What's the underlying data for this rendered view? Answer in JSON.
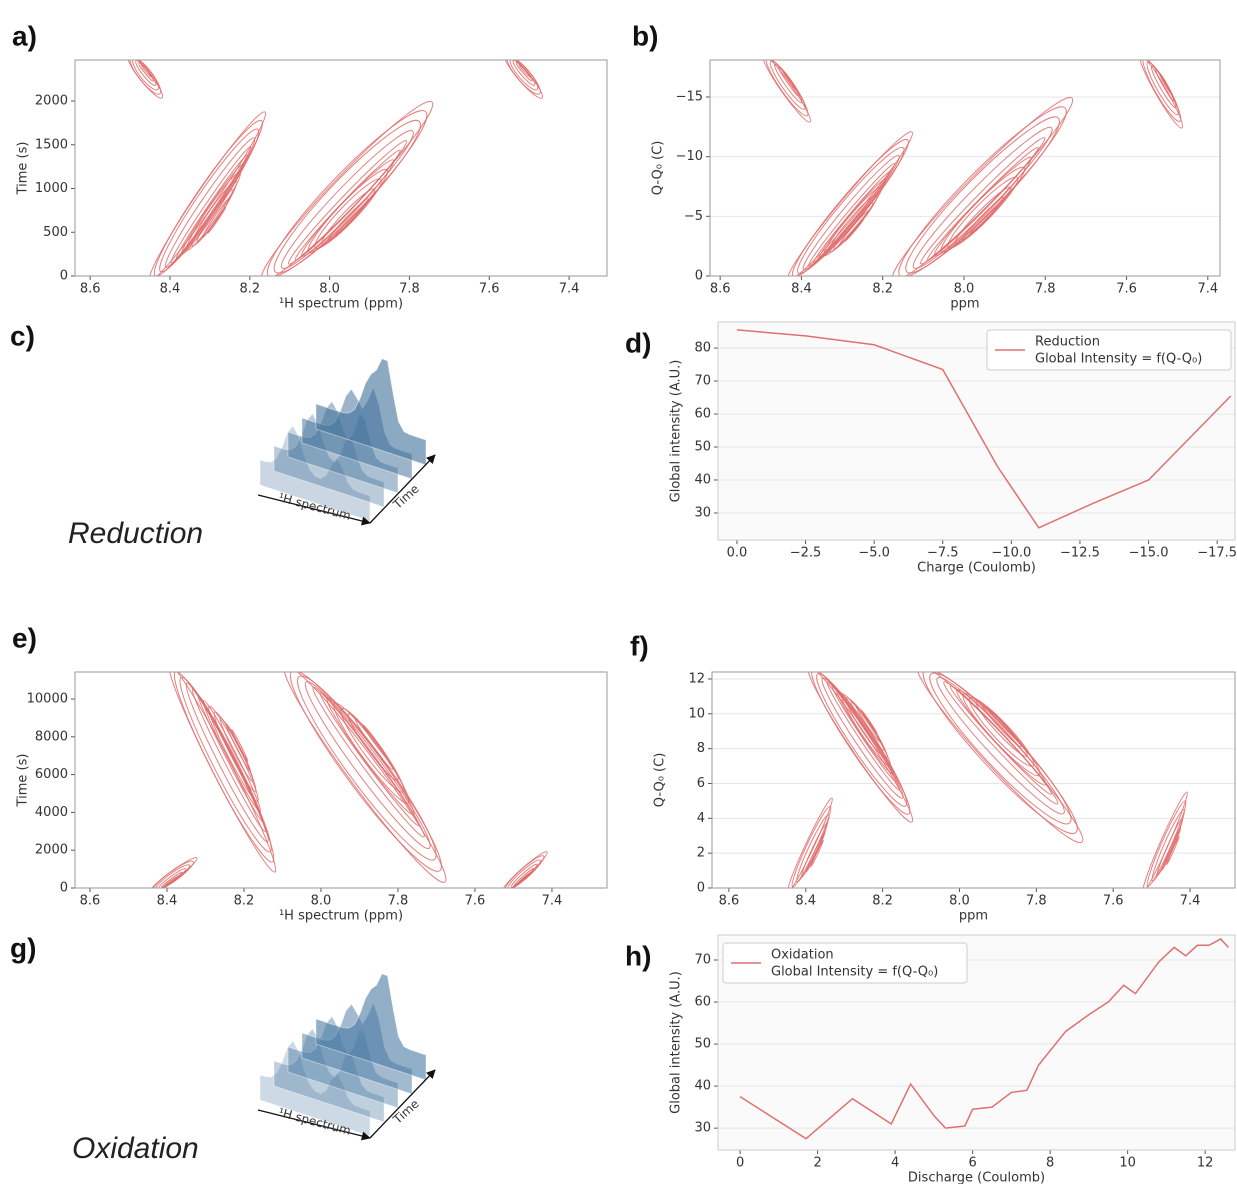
{
  "chart_data": [
    {
      "type": "contour",
      "panel_label": "a)",
      "xlabel": "¹H spectrum (ppm)",
      "ylabel": "Time (s)",
      "xlim": [
        8.638,
        7.305
      ],
      "ylim": [
        0,
        2469
      ],
      "xticks": [
        8.6,
        8.4,
        8.2,
        {
          "value": 8.0,
          "label": "8.0"
        },
        7.8,
        7.6,
        7.4
      ],
      "yticks": [
        0,
        500,
        1000,
        1500,
        2000
      ],
      "grid": false,
      "color": "#e06a6a"
    },
    {
      "type": "contour",
      "panel_label": "b)",
      "xlabel": "ppm",
      "ylabel": "Q-Q₀ (C)",
      "xlim": [
        8.625,
        7.37
      ],
      "ylim": [
        0,
        -18.1
      ],
      "xticks": [
        8.6,
        8.4,
        8.2,
        {
          "value": 8.0,
          "label": "8.0"
        },
        7.8,
        7.6,
        7.4
      ],
      "yticks": [
        0,
        {
          "value": -5,
          "label": "−5"
        },
        {
          "value": -10,
          "label": "−10"
        },
        {
          "value": -15,
          "label": "−15"
        }
      ],
      "grid": true,
      "color": "#e06a6a"
    },
    {
      "type": "surface",
      "panel_label": "c)",
      "caption": "Reduction",
      "xlabel": "¹H spectrum",
      "ylabel": "Time",
      "color": "#3f6f99"
    },
    {
      "type": "line",
      "panel_label": "d)",
      "xlabel": "Charge (Coulomb)",
      "ylabel": "Global intensity (A.U.)",
      "xlim": [
        0.69,
        -18.15
      ],
      "ylim": [
        21.8,
        87.9
      ],
      "xticks": [
        {
          "value": 0,
          "label": "0.0"
        },
        {
          "value": -2.5,
          "label": "−2.5"
        },
        {
          "value": -5,
          "label": "−5.0"
        },
        {
          "value": -7.5,
          "label": "−7.5"
        },
        {
          "value": -10,
          "label": "−10.0"
        },
        {
          "value": -12.5,
          "label": "−12.5"
        },
        {
          "value": -15,
          "label": "−15.0"
        },
        {
          "value": -17.5,
          "label": "−17.5"
        }
      ],
      "yticks": [
        30,
        40,
        50,
        60,
        70,
        80
      ],
      "grid": true,
      "legend": "upper right",
      "legend_note": "Global Intensity = f(Q-Q₀)",
      "series": [
        {
          "name": "Reduction",
          "color": "#e07070",
          "x": [
            0,
            -2.5,
            -5,
            -7.5,
            -9.5,
            -11,
            -13,
            -15,
            -18
          ],
          "values": [
            85.5,
            83.7,
            81,
            73.5,
            44,
            25.5,
            33,
            40,
            65.5
          ]
        }
      ]
    },
    {
      "type": "contour",
      "panel_label": "e)",
      "xlabel": "¹H spectrum (ppm)",
      "ylabel": "Time (s)",
      "xlim": [
        8.639,
        7.257
      ],
      "ylim": [
        0,
        11430
      ],
      "xticks": [
        8.6,
        8.4,
        8.2,
        {
          "value": 8.0,
          "label": "8.0"
        },
        7.8,
        7.6,
        7.4
      ],
      "yticks": [
        0,
        2000,
        4000,
        6000,
        8000,
        10000
      ],
      "grid": false,
      "color": "#e06a6a"
    },
    {
      "type": "contour",
      "panel_label": "f)",
      "xlabel": "ppm",
      "ylabel": "Q-Q₀ (C)",
      "xlim": [
        8.644,
        7.283
      ],
      "ylim": [
        0,
        12.4
      ],
      "xticks": [
        8.6,
        8.4,
        8.2,
        {
          "value": 8.0,
          "label": "8.0"
        },
        7.8,
        7.6,
        7.4
      ],
      "yticks": [
        0,
        2,
        4,
        6,
        8,
        10,
        12
      ],
      "grid": true,
      "color": "#e06a6a"
    },
    {
      "type": "surface",
      "panel_label": "g)",
      "caption": "Oxidation",
      "xlabel": "¹H spectrum",
      "ylabel": "Time",
      "color": "#4a7aa3"
    },
    {
      "type": "line",
      "panel_label": "h)",
      "xlabel": "Discharge (Coulomb)",
      "ylabel": "Global intensity (A.U.)",
      "xlim": [
        -0.57,
        12.77
      ],
      "ylim": [
        24.8,
        75.95
      ],
      "xticks": [
        0,
        2,
        4,
        6,
        8,
        10,
        12
      ],
      "yticks": [
        30,
        40,
        50,
        60,
        70
      ],
      "grid": true,
      "legend": "upper left",
      "legend_note": "Global Intensity = f(Q-Q₀)",
      "series": [
        {
          "name": "Oxidation",
          "color": "#e07070",
          "x": [
            0,
            1.7,
            2.9,
            3.9,
            4.4,
            5.0,
            5.3,
            5.8,
            6.0,
            6.5,
            7.0,
            7.4,
            7.7,
            8.4,
            9.0,
            9.5,
            9.9,
            10.2,
            10.8,
            11.2,
            11.5,
            11.8,
            12.1,
            12.4,
            12.6
          ],
          "values": [
            37.5,
            27.5,
            37,
            31,
            40.5,
            33,
            30,
            30.5,
            34.5,
            35,
            38.5,
            39,
            45,
            53,
            57,
            60,
            64,
            62,
            69.5,
            73,
            71,
            73.5,
            73.5,
            75,
            73
          ]
        }
      ]
    }
  ]
}
